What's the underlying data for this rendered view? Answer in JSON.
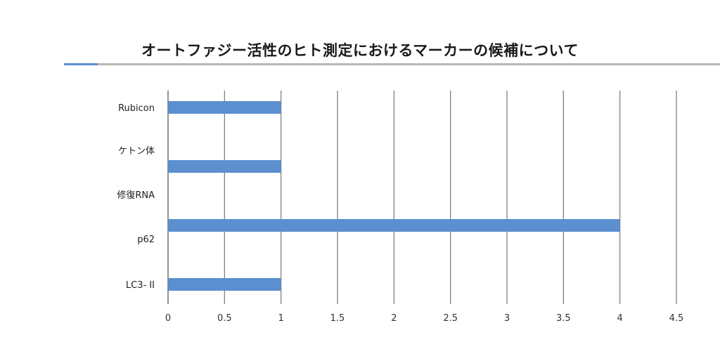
{
  "chart_data": {
    "type": "bar",
    "orientation": "horizontal",
    "title": "オートファジー活性のヒト測定におけるマーカーの候補について",
    "categories": [
      "Rubicon",
      "ケトン体",
      "修復RNA",
      "p62",
      "LC3- II"
    ],
    "values": [
      1,
      1,
      0,
      4,
      1
    ],
    "xlim": [
      0,
      4.5
    ],
    "xticks": [
      "0",
      "0.5",
      "1",
      "1.5",
      "2",
      "2.5",
      "3",
      "3.5",
      "4",
      "4.5"
    ],
    "xlabel": "",
    "ylabel": "",
    "grid": true,
    "bar_color": "#5b8fd0",
    "grid_color": "#777777",
    "accent_color": "#5b8fd0"
  }
}
